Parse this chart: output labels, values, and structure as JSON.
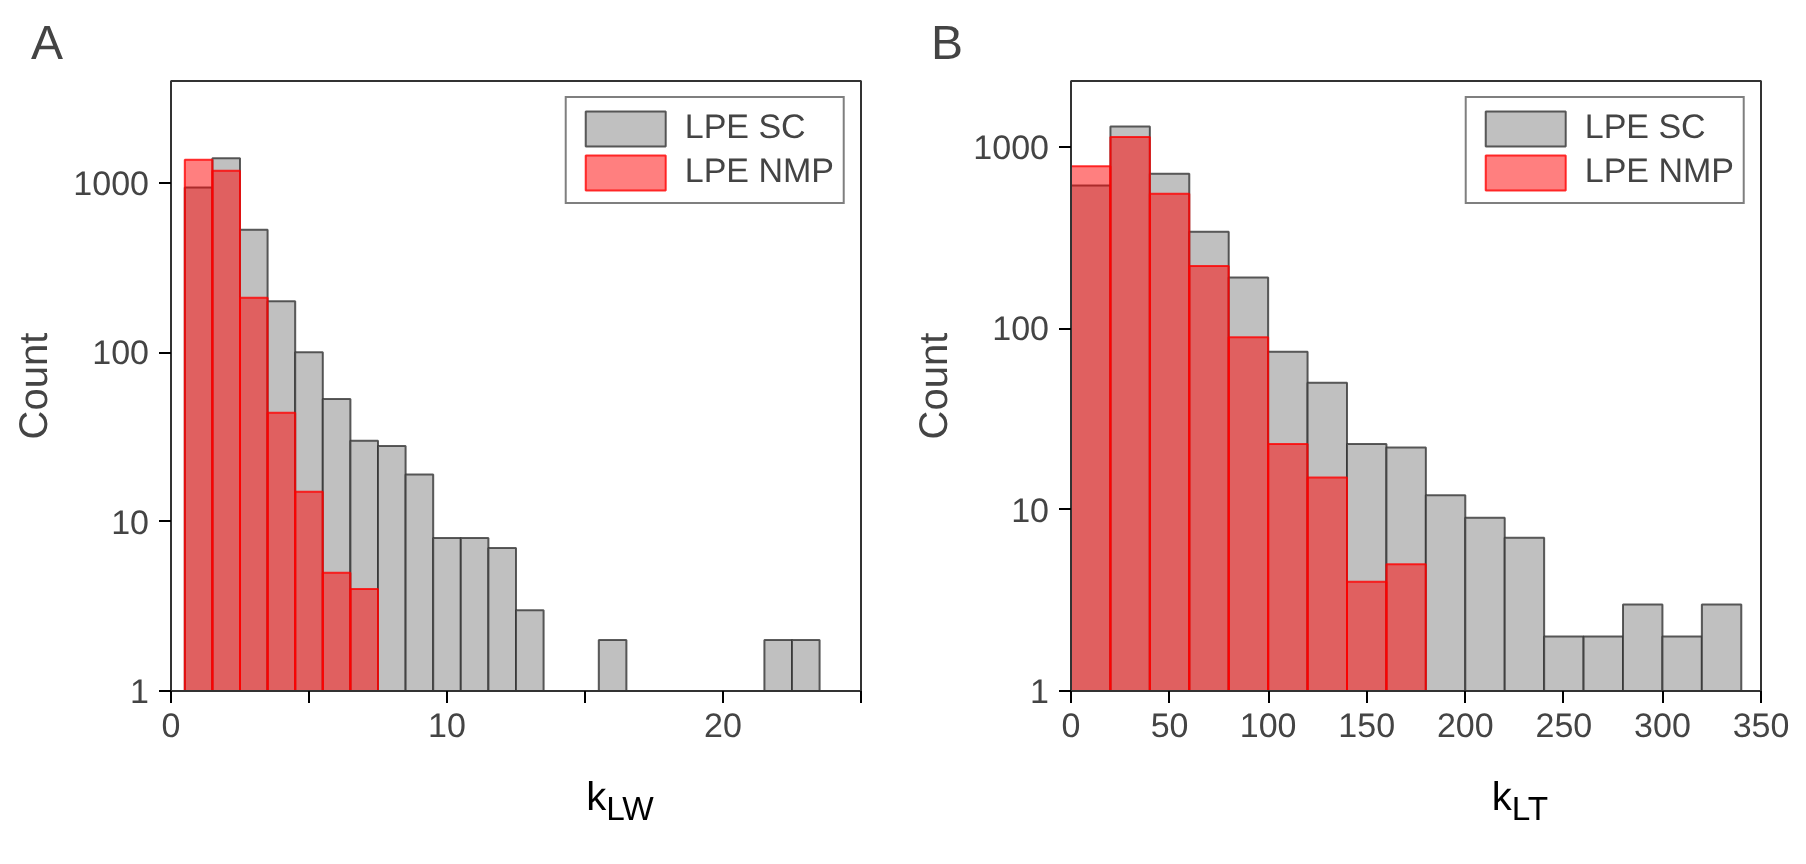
{
  "chart_data": [
    {
      "type": "histogram",
      "title": "A",
      "xlabel": "k$_{LW}$",
      "ylabel": "Count",
      "log": "y",
      "legend": "top right",
      "grid": false,
      "bins": [
        0.5,
        1.5,
        2.5,
        3.5,
        4.5,
        5.5,
        6.5,
        7.5,
        8.5,
        9.5,
        10.5,
        11.5,
        12.5,
        13.5,
        14.5,
        15.5,
        16.5,
        17.5,
        18.5,
        19.5,
        20.5,
        21.5,
        22.5,
        23.5
      ],
      "xlim": [
        0,
        25
      ],
      "xticks": [
        0,
        10,
        20,
        {
          "value": 5,
          "label": null
        },
        {
          "value": 15,
          "label": null
        },
        {
          "value": 25,
          "label": null
        }
      ],
      "ylim": [
        1,
        4000
      ],
      "yticks": [
        1,
        10,
        100,
        1000
      ],
      "series": [
        {
          "name": "LPE SC",
          "color": "#c0c0c0",
          "values": [
            940,
            1400,
            530,
            200,
            100,
            53,
            30,
            28,
            19,
            8,
            8,
            7,
            3,
            null,
            null,
            2,
            null,
            null,
            null,
            null,
            null,
            2,
            2
          ]
        },
        {
          "name": "LPE NMP",
          "color": "#ff0000",
          "values": [
            1370,
            1180,
            210,
            44,
            15,
            5,
            4,
            null,
            null,
            null,
            null,
            null,
            null,
            null,
            null,
            null,
            null,
            null,
            null,
            null,
            null,
            null,
            null
          ]
        }
      ]
    },
    {
      "type": "histogram",
      "title": "B",
      "xlabel": "k$_{LT}$",
      "ylabel": "Count",
      "log": "y",
      "legend": "top right",
      "grid": false,
      "bins": [
        0,
        20,
        40,
        60,
        80,
        100,
        120,
        140,
        160,
        180,
        200,
        220,
        240,
        260,
        280,
        300,
        320,
        340
      ],
      "xlim": [
        0,
        350
      ],
      "xticks": [
        0,
        50,
        100,
        150,
        200,
        250,
        300,
        350
      ],
      "ylim": [
        1,
        2300
      ],
      "yticks": [
        1,
        10,
        100,
        1000
      ],
      "series": [
        {
          "name": "LPE SC",
          "color": "#c0c0c0",
          "values": [
            610,
            1290,
            710,
            340,
            190,
            74,
            50,
            23,
            22,
            12,
            9,
            7,
            2,
            2,
            3,
            2,
            3
          ]
        },
        {
          "name": "LPE NMP",
          "color": "#ff0000",
          "values": [
            780,
            1130,
            550,
            220,
            89,
            23,
            15,
            4,
            5,
            null,
            null,
            null,
            null,
            null,
            null,
            null,
            null
          ]
        }
      ]
    }
  ]
}
